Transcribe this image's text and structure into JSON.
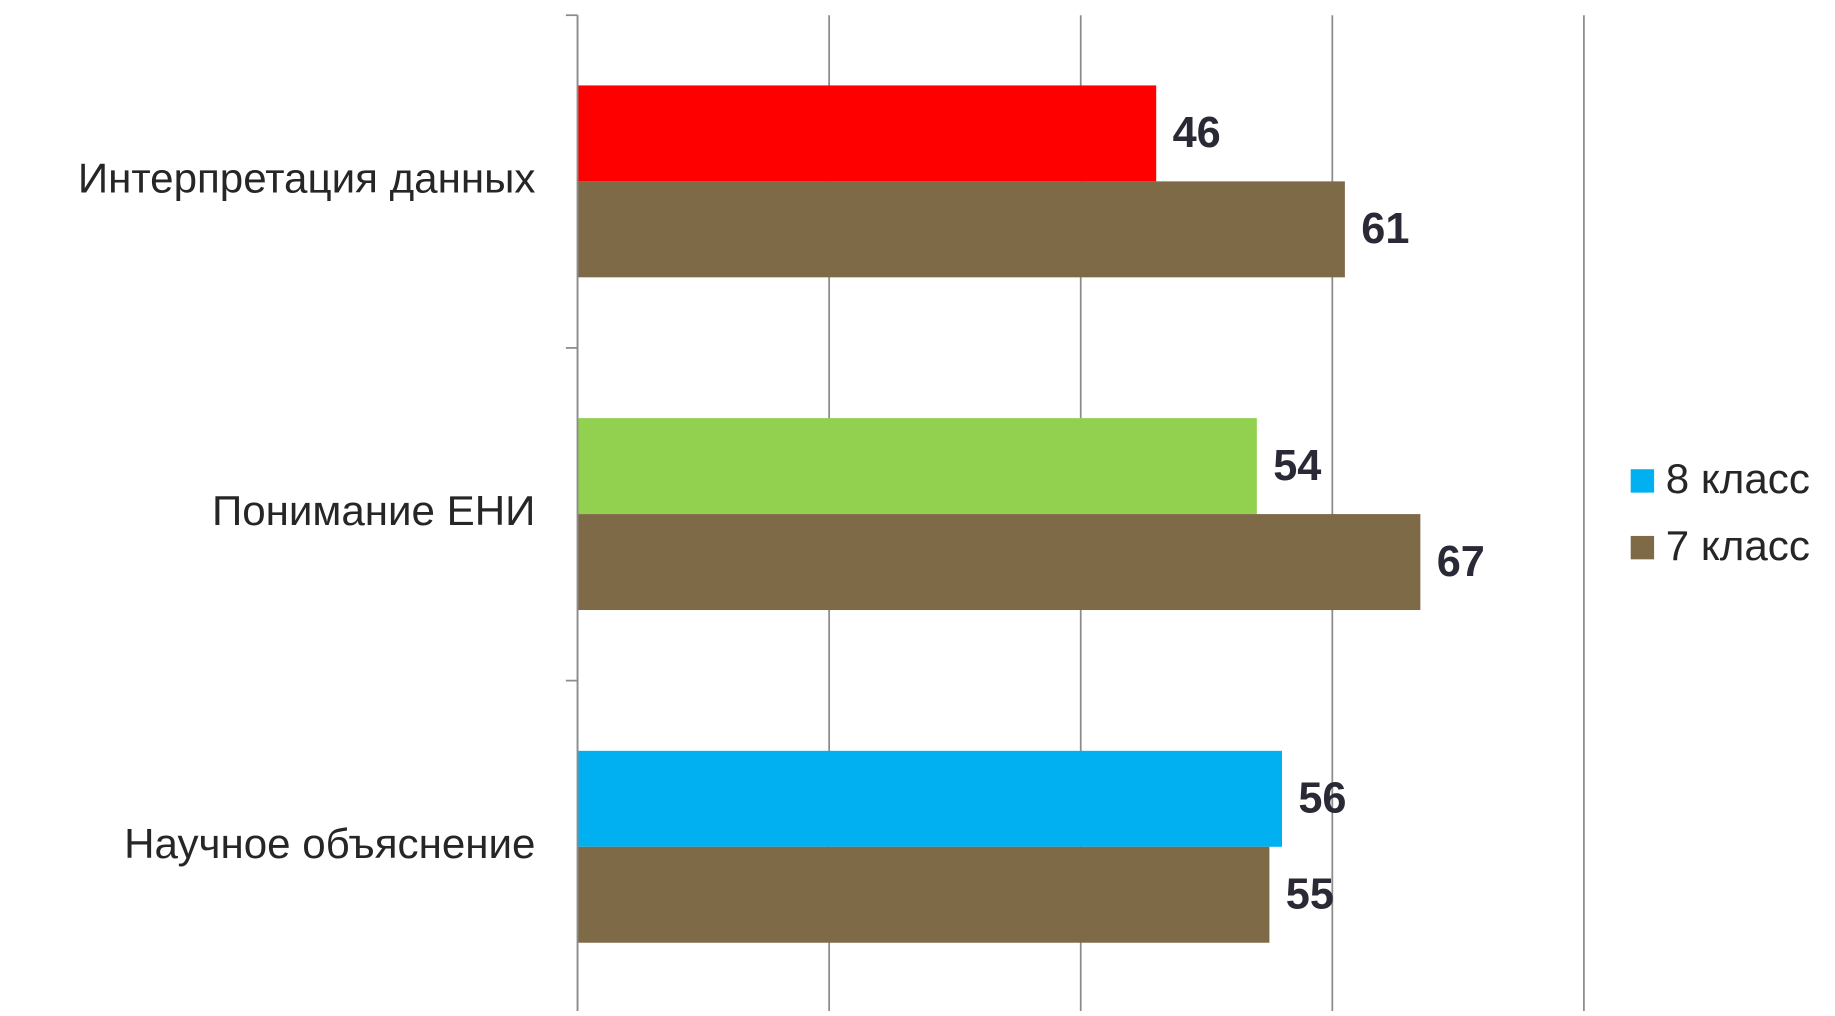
{
  "chart_data": {
    "type": "hbar",
    "categories": [
      "Интерпретация данных",
      "Понимание ЕНИ",
      "Научное объяснение"
    ],
    "series": [
      {
        "name": "8 класс",
        "color": "#00b0f0",
        "colors": [
          "#ff0000",
          "#92d050",
          "#00b0f0"
        ],
        "values": [
          46,
          54,
          56
        ]
      },
      {
        "name": "7 класс",
        "color": "#7f6a48",
        "values": [
          61,
          67,
          55
        ]
      }
    ],
    "xlim": [
      0,
      80
    ],
    "xticks": [
      0,
      20,
      40,
      60,
      80
    ],
    "grid": true,
    "legend": "right"
  }
}
